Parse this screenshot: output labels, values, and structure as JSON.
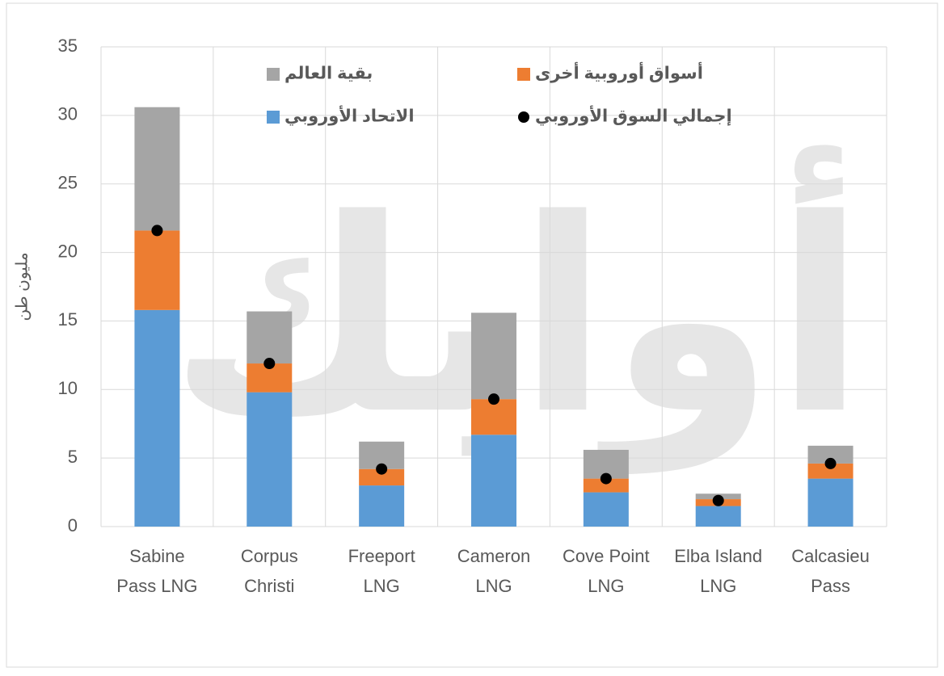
{
  "chart_data": {
    "type": "bar",
    "stacked": true,
    "watermark": "أوابك",
    "y_label": "مليون طن",
    "categories": [
      [
        "Sabine",
        "Pass LNG"
      ],
      [
        "Corpus",
        "Christi"
      ],
      [
        "Freeport",
        "LNG"
      ],
      [
        "Cameron",
        "LNG"
      ],
      [
        "Cove Point",
        "LNG"
      ],
      [
        "Elba Island",
        "LNG"
      ],
      [
        "Calcasieu",
        "Pass"
      ]
    ],
    "series": [
      {
        "name": "الاتحاد الأوروبي",
        "color": "#5b9bd5",
        "values": [
          15.8,
          9.8,
          3.0,
          6.7,
          2.5,
          1.5,
          3.5
        ]
      },
      {
        "name": "أسواق أوروبية أخرى",
        "color": "#ed7d31",
        "values": [
          5.8,
          2.1,
          1.2,
          2.6,
          1.0,
          0.5,
          1.1
        ]
      },
      {
        "name": "بقية العالم",
        "color": "#a5a5a5",
        "values": [
          9.0,
          3.8,
          2.0,
          6.3,
          2.1,
          0.4,
          1.3
        ]
      },
      {
        "name": "إجمالي السوق الأوروبي",
        "color": "#000000",
        "type": "dot",
        "values": [
          21.6,
          11.9,
          4.2,
          9.3,
          3.5,
          1.9,
          4.6
        ]
      }
    ],
    "ylim": [
      0,
      35
    ],
    "yticks": [
      0,
      5,
      10,
      15,
      20,
      25,
      30,
      35
    ],
    "grid": true
  }
}
